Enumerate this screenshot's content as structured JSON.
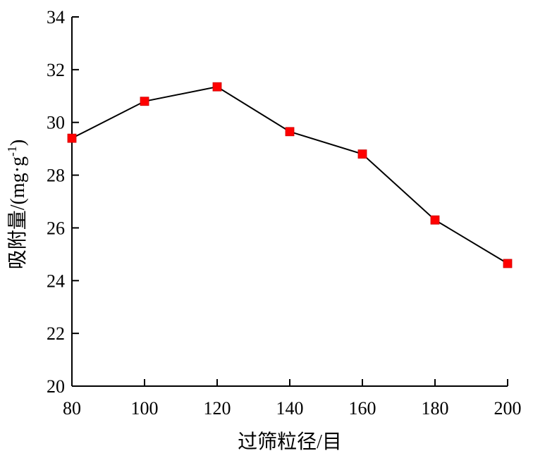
{
  "chart_data": {
    "type": "line",
    "xlabel": "过筛粒径/目",
    "ylabel": "吸附量/(mg·g",
    "ylabel_sup": "-1",
    "ylabel_close": ")",
    "xlim": [
      80,
      200
    ],
    "ylim": [
      20,
      34
    ],
    "xticks": [
      80,
      100,
      120,
      140,
      160,
      180,
      200
    ],
    "yticks": [
      20,
      22,
      24,
      26,
      28,
      30,
      32,
      34
    ],
    "grid": false,
    "series": [
      {
        "x": [
          80,
          100,
          120,
          140,
          160,
          180,
          200
        ],
        "y": [
          29.4,
          30.8,
          31.35,
          29.65,
          28.8,
          26.3,
          24.65
        ],
        "line_color": "#000000",
        "marker": "square",
        "marker_color": "#ff0000"
      }
    ]
  }
}
